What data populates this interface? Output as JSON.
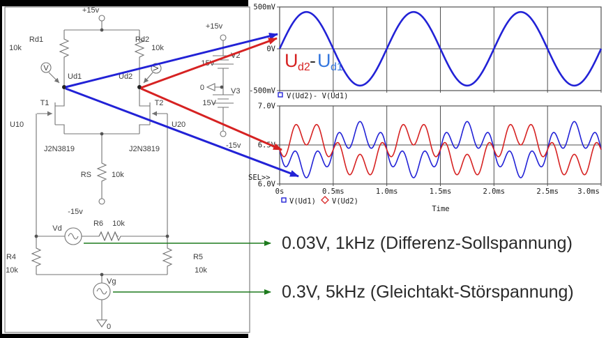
{
  "circuit": {
    "labels": {
      "supply_pos": "+15v",
      "rd1": "Rd1",
      "rd1_value": "10k",
      "rd2": "Rd2",
      "rd2_value": "10k",
      "probe1": "V",
      "probe2": "V",
      "ud1": "Ud1",
      "ud2": "Ud2",
      "t1": "T1",
      "t2": "T2",
      "u10": "U10",
      "u20": "U20",
      "jfet1": "J2N3819",
      "jfet2": "J2N3819",
      "rs": "RS",
      "rs_value": "10k",
      "supply_neg": "-15v",
      "r6": "R6",
      "r6_value": "10k",
      "vd": "Vd",
      "r4": "R4",
      "r4_value": "10k",
      "r5": "R5",
      "r5_value": "10k",
      "vg": "Vg",
      "ground": "0",
      "vcol_pos": "+15v",
      "v2": "V2",
      "v2_value": "15V",
      "vcol_gnd": "0",
      "v3": "V3",
      "v3_value": "15V",
      "vcol_neg": "-15v"
    }
  },
  "diff_label": {
    "u_red": "U",
    "sub_red": "d2",
    "minus": "-",
    "u_blue": "U",
    "sub_blue": "d1"
  },
  "annotations": [
    {
      "text": "0.03V, 1kHz (Differenz-Sollspannung)"
    },
    {
      "text": "0.3V, 5kHz (Gleichtakt-Störspannung)"
    }
  ],
  "colors": {
    "trace_blue": "#2222d6",
    "trace_red": "#d62222",
    "label_blue": "#3577de",
    "label_red": "#d62222",
    "green_arrow": "#1d7a1d",
    "grid": "#4f4f4f",
    "circuit": "#737373"
  },
  "chart_data": [
    {
      "type": "line",
      "title": "",
      "xlabel": "",
      "x_unit": "ms",
      "xlim_ms": [
        0,
        3
      ],
      "ylim_v": [
        -0.5,
        0.5
      ],
      "grid": true,
      "yticks": [
        {
          "v": 0.5,
          "label": "500mV"
        },
        {
          "v": 0.0,
          "label": "0V"
        },
        {
          "v": -0.5,
          "label": "-500mV"
        }
      ],
      "xticks": [
        {
          "v": 0.0,
          "label": ""
        },
        {
          "v": 0.5,
          "label": ""
        },
        {
          "v": 1.0,
          "label": ""
        },
        {
          "v": 1.5,
          "label": ""
        },
        {
          "v": 2.0,
          "label": ""
        },
        {
          "v": 2.5,
          "label": ""
        },
        {
          "v": 3.0,
          "label": ""
        }
      ],
      "show_xtick_labels": false,
      "legend_label": "V(Ud2)- V(Ud1)",
      "legend_marker": "square",
      "series": [
        {
          "name": "V(Ud2)-V(Ud1)",
          "color": "#2222d6",
          "width": 2.6,
          "offset_v": 0.0,
          "components": [
            {
              "amplitude_v": 0.44,
              "freq_hz": 1000,
              "phase_deg": 0
            }
          ]
        }
      ]
    },
    {
      "type": "line",
      "title": "",
      "xlabel": "Time",
      "sel_label": "SEL>>",
      "x_unit": "ms",
      "xlim_ms": [
        0,
        3
      ],
      "ylim_v": [
        6.0,
        7.0
      ],
      "grid": true,
      "yticks": [
        {
          "v": 7.0,
          "label": "7.0V"
        },
        {
          "v": 6.5,
          "label": "6.5V"
        },
        {
          "v": 6.0,
          "label": "6.0V"
        }
      ],
      "xticks": [
        {
          "v": 0.0,
          "label": "0s"
        },
        {
          "v": 0.5,
          "label": "0.5ms"
        },
        {
          "v": 1.0,
          "label": "1.0ms"
        },
        {
          "v": 1.5,
          "label": "1.5ms"
        },
        {
          "v": 2.0,
          "label": "2.0ms"
        },
        {
          "v": 2.5,
          "label": "2.5ms"
        },
        {
          "v": 3.0,
          "label": "3.0ms"
        }
      ],
      "show_xtick_labels": true,
      "series": [
        {
          "name": "V(Ud1)",
          "marker": "square",
          "color": "#2222d6",
          "width": 1.6,
          "offset_v": 6.44,
          "components": [
            {
              "amplitude_v": -0.21,
              "freq_hz": 1000,
              "phase_deg": 0
            },
            {
              "amplitude_v": -0.15,
              "freq_hz": 5000,
              "phase_deg": 0
            }
          ]
        },
        {
          "name": "V(Ud2)",
          "marker": "diamond",
          "color": "#d62222",
          "width": 1.6,
          "offset_v": 6.44,
          "components": [
            {
              "amplitude_v": 0.21,
              "freq_hz": 1000,
              "phase_deg": 0
            },
            {
              "amplitude_v": -0.15,
              "freq_hz": 5000,
              "phase_deg": 0
            }
          ]
        }
      ]
    }
  ]
}
